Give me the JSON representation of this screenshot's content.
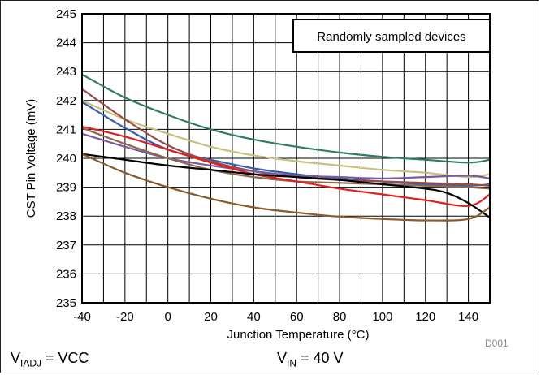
{
  "chart_data": {
    "type": "line",
    "title": "",
    "xlabel": "Junction Temperature (°C)",
    "ylabel": "CST Pin Voltage (mV)",
    "xlim": [
      -40,
      150
    ],
    "ylim": [
      235,
      245
    ],
    "xticks": [
      -40,
      -20,
      0,
      20,
      40,
      60,
      80,
      100,
      120,
      140
    ],
    "yticks": [
      235,
      236,
      237,
      238,
      239,
      240,
      241,
      242,
      243,
      244,
      245
    ],
    "grid": true,
    "legend_box_text": "Randomly sampled devices",
    "series": [
      {
        "color": "#2e7d5b",
        "x": [
          -40,
          -20,
          0,
          20,
          40,
          60,
          80,
          100,
          120,
          140,
          150
        ],
        "y": [
          242.9,
          242.1,
          241.5,
          241.0,
          240.65,
          240.4,
          240.2,
          240.05,
          239.95,
          239.85,
          239.95
        ]
      },
      {
        "color": "#c8c080",
        "x": [
          -40,
          -20,
          0,
          20,
          40,
          60,
          80,
          100,
          120,
          140,
          150
        ],
        "y": [
          242.0,
          241.35,
          240.85,
          240.4,
          240.1,
          239.9,
          239.75,
          239.6,
          239.5,
          239.35,
          239.45
        ]
      },
      {
        "color": "#3a5fa8",
        "x": [
          -40,
          -20,
          0,
          20,
          40,
          60,
          80,
          100,
          120,
          140,
          150
        ],
        "y": [
          241.95,
          241.05,
          240.3,
          239.95,
          239.65,
          239.45,
          239.3,
          239.2,
          239.1,
          239.05,
          239.1
        ]
      },
      {
        "color": "#a04848",
        "x": [
          -40,
          -20,
          0,
          20,
          40,
          60,
          80,
          100,
          120,
          140,
          150
        ],
        "y": [
          242.4,
          241.35,
          240.45,
          239.9,
          239.55,
          239.35,
          239.25,
          239.2,
          239.15,
          239.1,
          239.05
        ]
      },
      {
        "color": "#7a5a9a",
        "x": [
          -40,
          -20,
          0,
          20,
          40,
          60,
          80,
          100,
          120,
          140,
          150
        ],
        "y": [
          240.85,
          240.4,
          240.0,
          239.75,
          239.55,
          239.4,
          239.35,
          239.3,
          239.35,
          239.4,
          239.3
        ]
      },
      {
        "color": "#8a6a4a",
        "x": [
          -40,
          -20,
          0,
          20,
          40,
          60,
          80,
          100,
          120,
          140,
          150
        ],
        "y": [
          241.05,
          240.5,
          240.0,
          239.6,
          239.35,
          239.2,
          239.15,
          239.1,
          239.05,
          239.0,
          238.95
        ]
      },
      {
        "color": "#e02020",
        "x": [
          -40,
          -20,
          0,
          20,
          40,
          60,
          80,
          100,
          120,
          140,
          150
        ],
        "y": [
          241.1,
          240.75,
          240.3,
          239.85,
          239.45,
          239.2,
          238.95,
          238.75,
          238.55,
          238.35,
          238.75
        ]
      },
      {
        "color": "#000000",
        "x": [
          -40,
          -20,
          0,
          20,
          40,
          60,
          80,
          100,
          120,
          130,
          140,
          150
        ],
        "y": [
          240.15,
          239.95,
          239.75,
          239.6,
          239.45,
          239.35,
          239.25,
          239.1,
          238.95,
          238.8,
          238.45,
          237.95
        ]
      },
      {
        "color": "#8b5a2b",
        "x": [
          -40,
          -20,
          0,
          20,
          40,
          60,
          80,
          100,
          120,
          140,
          150
        ],
        "y": [
          240.15,
          239.5,
          239.0,
          238.6,
          238.3,
          238.12,
          237.98,
          237.9,
          237.85,
          237.9,
          238.3
        ]
      }
    ]
  },
  "footer": {
    "left_main": "V",
    "left_sub": "IADJ",
    "left_rest": " = VCC",
    "right_main": "V",
    "right_sub": "IN",
    "right_rest": " = 40 V",
    "figure_id": "D001"
  }
}
